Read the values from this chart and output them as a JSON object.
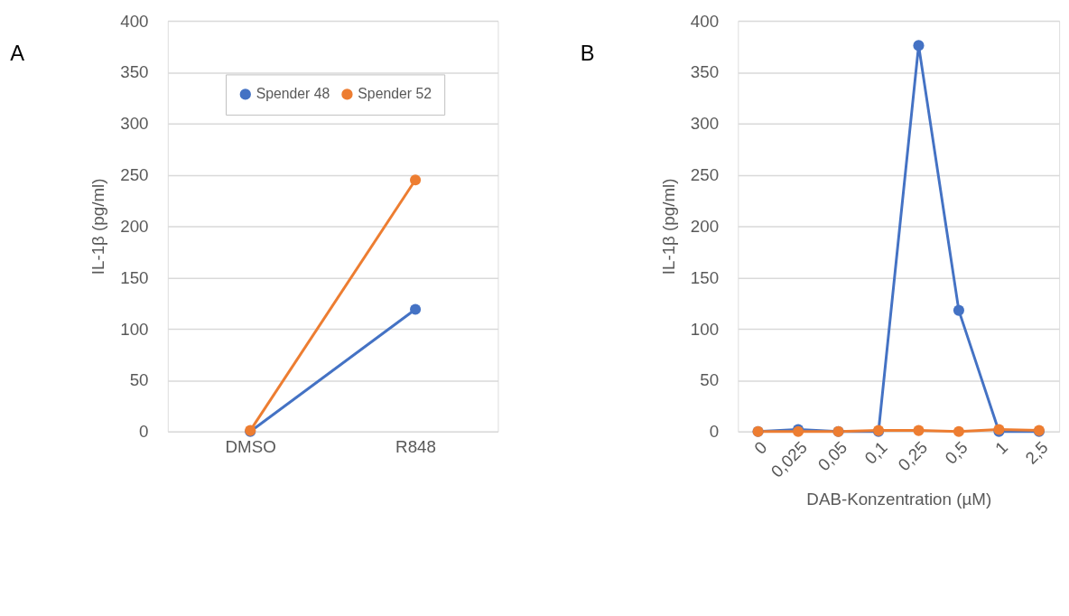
{
  "chart_data": [
    {
      "type": "line",
      "title": "A",
      "categories": [
        "DMSO",
        "R848"
      ],
      "ylabel": "IL-1β  (pg/ml)",
      "ylim": [
        0,
        400
      ],
      "yticks": [
        0,
        50,
        100,
        150,
        200,
        250,
        300,
        350,
        400
      ],
      "grid": "y",
      "legend": "top right",
      "marker": "circle",
      "line_style": "solid",
      "series": [
        {
          "name": "Spender 48",
          "color": "#4472c4",
          "values": [
            0,
            119
          ]
        },
        {
          "name": "Spender 52",
          "color": "#ed7d31",
          "values": [
            1,
            245
          ]
        }
      ]
    },
    {
      "type": "line",
      "title": "B",
      "categories": [
        "0",
        "0,025",
        "0,05",
        "0,1",
        "0,25",
        "0,5",
        "1",
        "2,5"
      ],
      "xlabel": "DAB-Konzentration (µM)",
      "ylabel": "IL-1β  (pg/ml)",
      "ylim": [
        0,
        400
      ],
      "yticks": [
        0,
        50,
        100,
        150,
        200,
        250,
        300,
        350,
        400
      ],
      "grid": "y",
      "marker": "circle",
      "line_style": "solid",
      "series": [
        {
          "color": "#4472c4",
          "values": [
            0,
            2,
            0,
            0,
            376,
            118,
            0,
            0
          ]
        },
        {
          "color": "#ed7d31",
          "values": [
            0,
            0,
            0,
            1,
            1,
            0,
            2,
            1
          ]
        }
      ]
    }
  ]
}
